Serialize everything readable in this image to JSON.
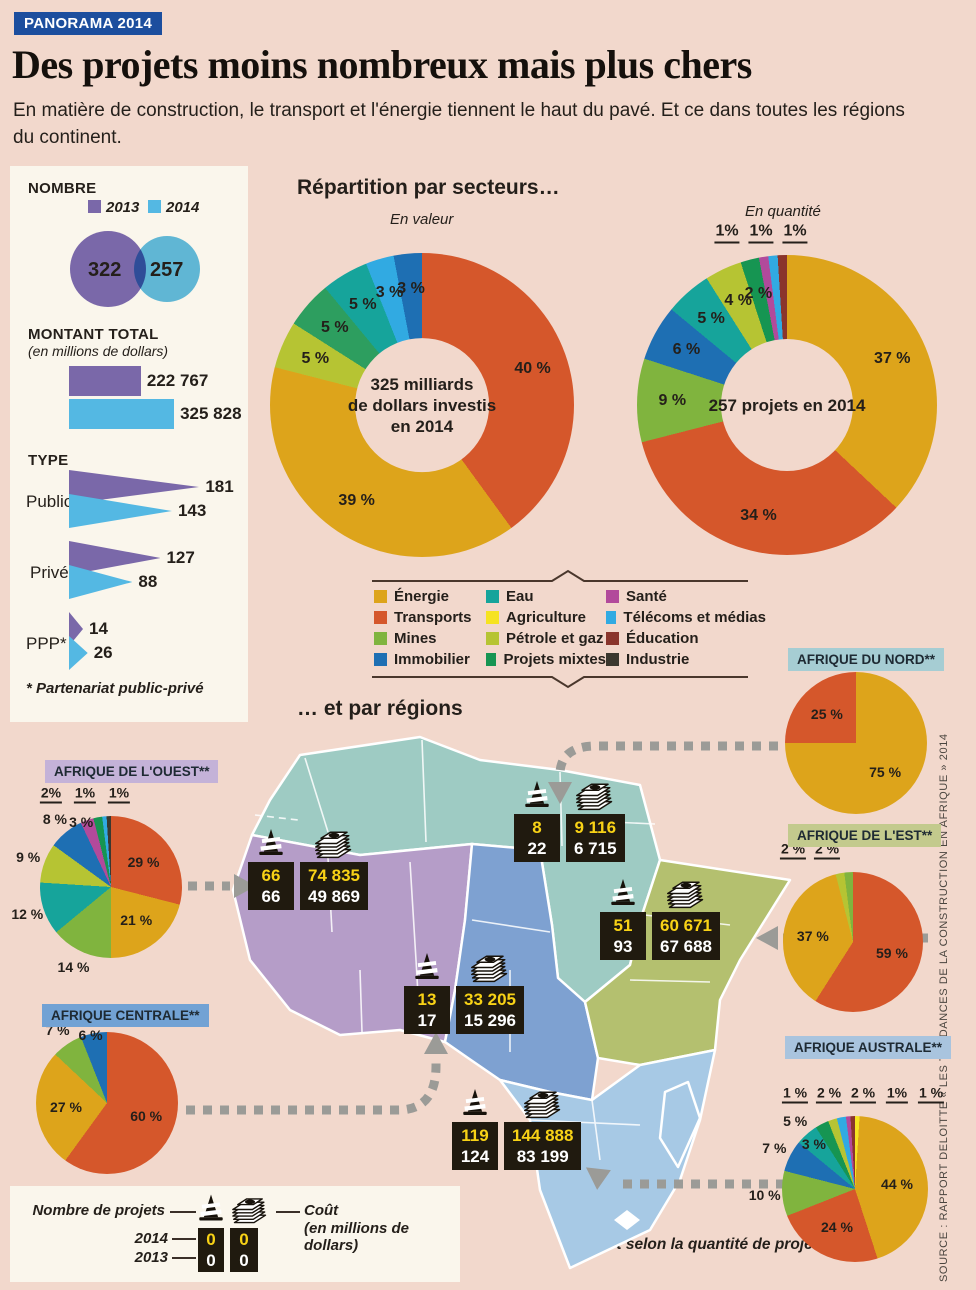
{
  "header": {
    "badge": "PANORAMA 2014",
    "title": "Des projets moins nombreux mais plus chers",
    "subtitle": "En matière de construction, le transport et l'énergie tiennent le haut du pavé. Et ce dans toutes les régions du continent."
  },
  "left_panel": {
    "nombre": {
      "title": "NOMBRE"
    },
    "montant": {
      "title": "MONTANT TOTAL",
      "subtitle": "(en millions de dollars)"
    },
    "type": {
      "title": "TYPE",
      "footnote": "* Partenariat public-privé"
    }
  },
  "sectors": {
    "title": "Répartition par secteurs…",
    "valeur_center": [
      "325 milliards",
      "de dollars investis",
      "en 2014"
    ],
    "quantite_center": "257 projets en 2014",
    "legend": [
      {
        "label": "Énergie",
        "color": "#dda41b"
      },
      {
        "label": "Transports",
        "color": "#d5572b"
      },
      {
        "label": "Mines",
        "color": "#80b43e"
      },
      {
        "label": "Immobilier",
        "color": "#1e6fb3"
      },
      {
        "label": "Eau",
        "color": "#16a49b"
      },
      {
        "label": "Agriculture",
        "color": "#f6e321"
      },
      {
        "label": "Pétrole et gaz",
        "color": "#b6c433"
      },
      {
        "label": "Projets mixtes",
        "color": "#169552"
      },
      {
        "label": "Santé",
        "color": "#b24a9b"
      },
      {
        "label": "Télécoms et médias",
        "color": "#31aae2"
      },
      {
        "label": "Éducation",
        "color": "#8a352c"
      },
      {
        "label": "Industrie",
        "color": "#3b382f"
      }
    ]
  },
  "regions_title": "… et par régions",
  "regions": {
    "nord": {
      "name": "AFRIQUE DU NORD**",
      "header_bg": "#a6cdd3",
      "map_color": "#9ecbc3",
      "callout": {
        "projects_2014": "8",
        "projects_2013": "22",
        "cost_2014": "9 116",
        "cost_2013": "6 715"
      }
    },
    "ouest": {
      "name": "AFRIQUE DE L'OUEST**",
      "header_bg": "#c4b2d8",
      "map_color": "#b59dc8",
      "callout": {
        "projects_2014": "66",
        "projects_2013": "66",
        "cost_2014": "74 835",
        "cost_2013": "49 869"
      }
    },
    "centrale": {
      "name": "AFRIQUE CENTRALE**",
      "header_bg": "#72a2d4",
      "map_color": "#7ea1d1",
      "callout": {
        "projects_2014": "13",
        "projects_2013": "17",
        "cost_2014": "33 205",
        "cost_2013": "15 296"
      }
    },
    "est": {
      "name": "AFRIQUE DE L'EST**",
      "header_bg": "#c3ca8d",
      "map_color": "#b4c06f",
      "callout": {
        "projects_2014": "51",
        "projects_2013": "93",
        "cost_2014": "60 671",
        "cost_2013": "67 688"
      }
    },
    "australe": {
      "name": "AFRIQUE AUSTRALE**",
      "header_bg": "#a9c4de",
      "map_color": "#a7c9e5",
      "callout": {
        "projects_2014": "119",
        "projects_2013": "124",
        "cost_2014": "144 888",
        "cost_2013": "83 199"
      }
    }
  },
  "map_legend": {
    "projects_label": "Nombre de projets",
    "cost_label": "Coût",
    "cost_sub": "(en millions de dollars)",
    "year_top": "2014",
    "year_bottom": "2013",
    "sample_top": "0",
    "sample_bottom": "0"
  },
  "footnote_regions": "** Part selon la quantité de projets",
  "source": "SOURCE : RAPPORT DELOITTE « LES TENDANCES DE LA CONSTRUCTION EN AFRIQUE » 2014",
  "chart_data": [
    {
      "id": "nombre",
      "type": "venn",
      "title": "NOMBRE",
      "series": [
        {
          "name": "2013",
          "value": 322,
          "color": "#7a68a9"
        },
        {
          "name": "2014",
          "value": 257,
          "color": "#54b8e3"
        }
      ]
    },
    {
      "id": "montant",
      "type": "bar",
      "title": "MONTANT TOTAL (en millions de dollars)",
      "categories": [
        "2013",
        "2014"
      ],
      "values": [
        222767,
        325828
      ],
      "value_labels": [
        "222 767",
        "325 828"
      ],
      "colors": [
        "#7a68a9",
        "#54b8e3"
      ]
    },
    {
      "id": "type",
      "type": "bar",
      "title": "TYPE",
      "categories": [
        "Public",
        "Privé",
        "PPP*"
      ],
      "series": [
        {
          "name": "2013",
          "color": "#7a68a9",
          "values": [
            181,
            127,
            14
          ]
        },
        {
          "name": "2014",
          "color": "#54b8e3",
          "values": [
            143,
            88,
            26
          ]
        }
      ]
    },
    {
      "id": "secteurs-valeur",
      "type": "pie",
      "variant": "donut",
      "title": "En valeur",
      "center_label": "325 milliards de dollars investis en 2014",
      "slices": [
        {
          "sector": "Transports",
          "pct": 40,
          "label": "40 %",
          "color": "#d5572b"
        },
        {
          "sector": "Énergie",
          "pct": 39,
          "label": "39 %",
          "color": "#dda41b"
        },
        {
          "sector": "Pétrole et gaz",
          "pct": 5,
          "label": "5 %",
          "color": "#b6c433"
        },
        {
          "sector": "Projets mixtes",
          "pct": 5,
          "label": "5 %",
          "color": "#2d9e5f"
        },
        {
          "sector": "Eau",
          "pct": 5,
          "label": "5 %",
          "color": "#16a49b"
        },
        {
          "sector": "Télécoms et médias",
          "pct": 3,
          "label": "3 %",
          "color": "#31aae2"
        },
        {
          "sector": "Immobilier",
          "pct": 3,
          "label": "3 %",
          "color": "#1e6fb3"
        }
      ]
    },
    {
      "id": "secteurs-quantite",
      "type": "pie",
      "variant": "donut",
      "title": "En quantité",
      "center_label": "257 projets en 2014",
      "slices": [
        {
          "sector": "Énergie",
          "pct": 37,
          "label": "37 %",
          "color": "#dda41b"
        },
        {
          "sector": "Transports",
          "pct": 34,
          "label": "34 %",
          "color": "#d5572b"
        },
        {
          "sector": "Mines",
          "pct": 9,
          "label": "9 %",
          "color": "#80b43e"
        },
        {
          "sector": "Immobilier",
          "pct": 6,
          "label": "6 %",
          "color": "#1e6fb3"
        },
        {
          "sector": "Eau",
          "pct": 5,
          "label": "5 %",
          "color": "#16a49b"
        },
        {
          "sector": "Pétrole et gaz",
          "pct": 4,
          "label": "4 %",
          "color": "#b6c433"
        },
        {
          "sector": "Projets mixtes",
          "pct": 2,
          "label": "2 %",
          "color": "#169552"
        },
        {
          "sector": "Santé",
          "pct": 1,
          "label": "1%",
          "color": "#b24a9b"
        },
        {
          "sector": "Télécoms et médias",
          "pct": 1,
          "label": "1%",
          "color": "#31aae2"
        },
        {
          "sector": "Éducation",
          "pct": 1,
          "label": "1%",
          "color": "#8a352c"
        }
      ]
    },
    {
      "id": "pie-nord",
      "type": "pie",
      "title": "AFRIQUE DU NORD**",
      "slices": [
        {
          "sector": "Énergie",
          "pct": 75,
          "label": "75 %",
          "color": "#dda41b"
        },
        {
          "sector": "Transports",
          "pct": 25,
          "label": "25 %",
          "color": "#d5572b"
        }
      ]
    },
    {
      "id": "pie-ouest",
      "type": "pie",
      "title": "AFRIQUE DE L'OUEST**",
      "slices": [
        {
          "sector": "Transports",
          "pct": 29,
          "label": "29 %",
          "color": "#d5572b"
        },
        {
          "sector": "Énergie",
          "pct": 21,
          "label": "21 %",
          "color": "#dda41b"
        },
        {
          "sector": "Mines",
          "pct": 14,
          "label": "14 %",
          "color": "#80b43e"
        },
        {
          "sector": "Eau",
          "pct": 12,
          "label": "12 %",
          "color": "#16a49b"
        },
        {
          "sector": "Pétrole et gaz",
          "pct": 9,
          "label": "9 %",
          "color": "#b6c433"
        },
        {
          "sector": "Immobilier",
          "pct": 8,
          "label": "8 %",
          "color": "#1e6fb3"
        },
        {
          "sector": "Santé",
          "pct": 3,
          "label": "3 %",
          "color": "#b24a9b"
        },
        {
          "sector": "Projets mixtes",
          "pct": 2,
          "label": "2%",
          "color": "#169552"
        },
        {
          "sector": "Télécoms et médias",
          "pct": 1,
          "label": "1%",
          "color": "#31aae2"
        },
        {
          "sector": "Industrie",
          "pct": 1,
          "label": "1%",
          "color": "#3b382f"
        }
      ]
    },
    {
      "id": "pie-centrale",
      "type": "pie",
      "title": "AFRIQUE CENTRALE**",
      "slices": [
        {
          "sector": "Transports",
          "pct": 60,
          "label": "60 %",
          "color": "#d5572b"
        },
        {
          "sector": "Énergie",
          "pct": 27,
          "label": "27 %",
          "color": "#dda41b"
        },
        {
          "sector": "Mines",
          "pct": 7,
          "label": "7 %",
          "color": "#80b43e"
        },
        {
          "sector": "Immobilier",
          "pct": 6,
          "label": "6 %",
          "color": "#1e6fb3"
        }
      ]
    },
    {
      "id": "pie-est",
      "type": "pie",
      "title": "AFRIQUE DE L'EST**",
      "slices": [
        {
          "sector": "Transports",
          "pct": 59,
          "label": "59 %",
          "color": "#d5572b"
        },
        {
          "sector": "Énergie",
          "pct": 37,
          "label": "37 %",
          "color": "#dda41b"
        },
        {
          "sector": "Pétrole et gaz",
          "pct": 2,
          "label": "2 %",
          "color": "#b6c433"
        },
        {
          "sector": "Mines",
          "pct": 2,
          "label": "2 %",
          "color": "#80b43e"
        }
      ]
    },
    {
      "id": "pie-australe",
      "type": "pie",
      "title": "AFRIQUE AUSTRALE**",
      "slices": [
        {
          "sector": "Agriculture",
          "pct": 1,
          "label": "1 %",
          "color": "#f6e321"
        },
        {
          "sector": "Énergie",
          "pct": 44,
          "label": "44 %",
          "color": "#dda41b"
        },
        {
          "sector": "Transports",
          "pct": 24,
          "label": "24 %",
          "color": "#d5572b"
        },
        {
          "sector": "Mines",
          "pct": 10,
          "label": "10 %",
          "color": "#80b43e"
        },
        {
          "sector": "Immobilier",
          "pct": 7,
          "label": "7 %",
          "color": "#1e6fb3"
        },
        {
          "sector": "Eau",
          "pct": 5,
          "label": "5 %",
          "color": "#16a49b"
        },
        {
          "sector": "Projets mixtes",
          "pct": 3,
          "label": "3 %",
          "color": "#169552"
        },
        {
          "sector": "Pétrole et gaz",
          "pct": 2,
          "label": "2 %",
          "color": "#b6c433"
        },
        {
          "sector": "Télécoms et médias",
          "pct": 2,
          "label": "2 %",
          "color": "#31aae2"
        },
        {
          "sector": "Santé",
          "pct": 1,
          "label": "1%",
          "color": "#b24a9b"
        },
        {
          "sector": "Éducation",
          "pct": 1,
          "label": "1 %",
          "color": "#8a352c"
        }
      ]
    }
  ]
}
